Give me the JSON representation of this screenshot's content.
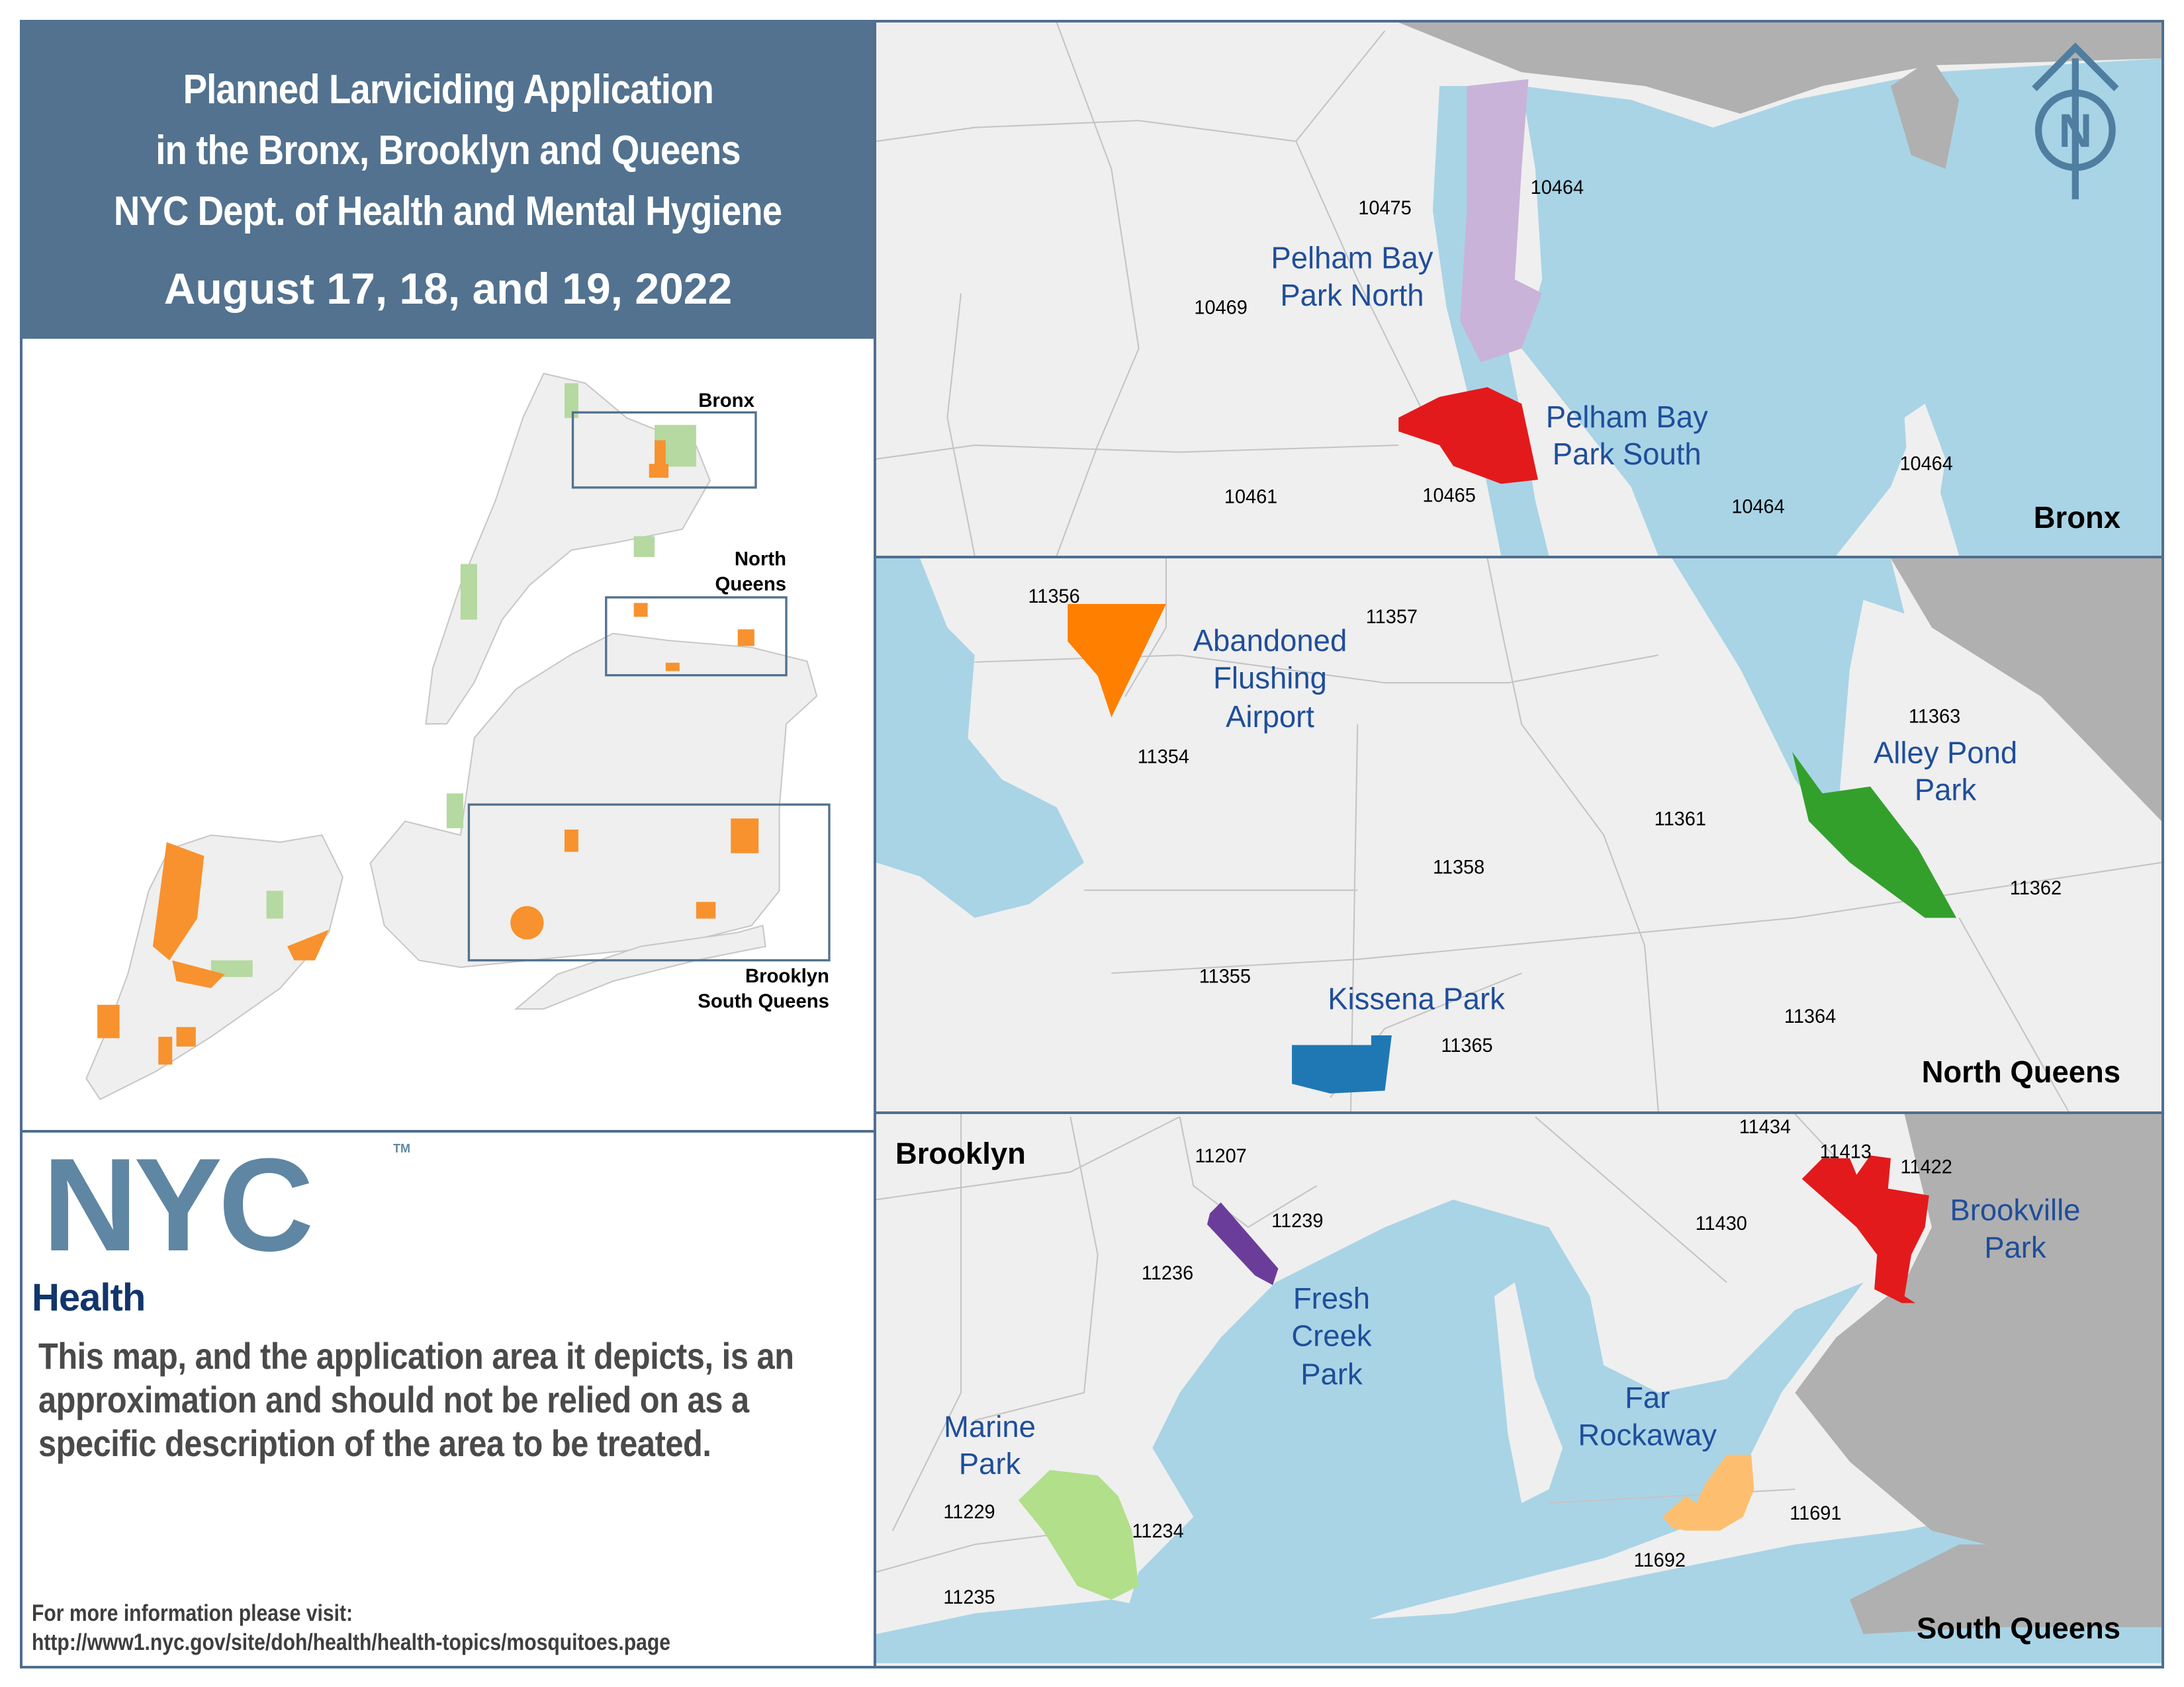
{
  "header": {
    "title_lines": [
      "Planned Larviciding Application",
      "in the Bronx, Brooklyn and Queens",
      "NYC Dept. of Health and Mental Hygiene"
    ],
    "date": "August 17, 18, and 19, 2022"
  },
  "inset": {
    "labels": {
      "bronx": "Bronx",
      "north_queens_1": "North",
      "north_queens_2": "Queens",
      "bsq_1": "Brooklyn",
      "bsq_2": "South Queens"
    }
  },
  "logo": {
    "nyc": "NYC",
    "tm": "TM",
    "health": "Health"
  },
  "disclaimer": "This map, and the application area it depicts, is an approximation and should not be relied on as a specific description of the area to be treated.",
  "more_info": {
    "label": "For more information please visit:",
    "url": "http://www1.nyc.gov/site/doh/health/health-topics/mosquitoes.page"
  },
  "colors": {
    "water": "#a9d4e6",
    "land": "#efefef",
    "outside": "#b0b0b0",
    "frame": "#52728f",
    "park_label": "#1f4e9a",
    "inset_target": "#f7922e",
    "inset_park": "#b5d9a0"
  },
  "compass": {
    "letter": "N",
    "icon": "north-arrow-icon"
  },
  "bronx": {
    "region": "Bronx",
    "zips": [
      "10475",
      "10464",
      "10469",
      "10461",
      "10465",
      "10464",
      "10464"
    ],
    "parks": [
      {
        "line1": "Pelham Bay",
        "line2": "Park North",
        "color": "#c9b3d9"
      },
      {
        "line1": "Pelham Bay",
        "line2": "Park South",
        "color": "#e31a1c"
      }
    ]
  },
  "north_queens": {
    "region": "North Queens",
    "zips": [
      "11356",
      "11357",
      "11354",
      "11363",
      "11361",
      "11358",
      "11362",
      "11355",
      "11365",
      "11364"
    ],
    "parks": [
      {
        "lines": [
          "Abandoned",
          "Flushing",
          "Airport"
        ],
        "color": "#ff7f00"
      },
      {
        "lines": [
          "Alley Pond",
          "Park"
        ],
        "color": "#33a02c"
      },
      {
        "lines": [
          "Kissena Park"
        ],
        "color": "#1f78b4"
      }
    ]
  },
  "south_queens": {
    "region_brooklyn": "Brooklyn",
    "region": "South Queens",
    "zips": [
      "11207",
      "11434",
      "11413",
      "11422",
      "11239",
      "11430",
      "11236",
      "11229",
      "11234",
      "11691",
      "11692",
      "11235"
    ],
    "parks": [
      {
        "lines": [
          "Fresh",
          "Creek",
          "Park"
        ],
        "color": "#6a3d9a"
      },
      {
        "lines": [
          "Brookville",
          "Park"
        ],
        "color": "#e31a1c"
      },
      {
        "lines": [
          "Marine",
          "Park"
        ],
        "color": "#b2df8a"
      },
      {
        "lines": [
          "Far",
          "Rockaway"
        ],
        "color": "#fdbf6f"
      }
    ]
  }
}
